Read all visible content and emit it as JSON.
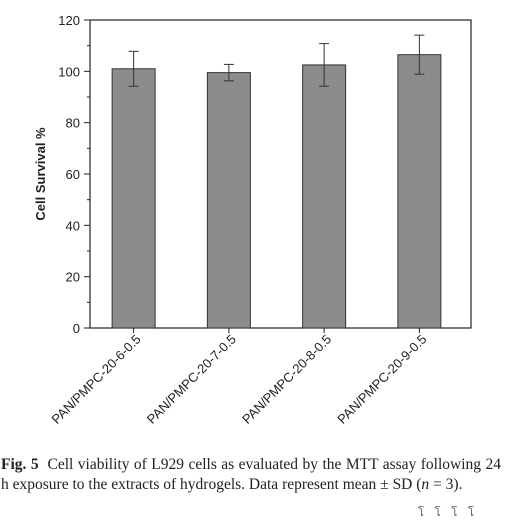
{
  "chart_data": {
    "type": "bar",
    "categories": [
      "PAN/PMPC-20-6-0.5",
      "PAN/PMPC-20-7-0.5",
      "PAN/PMPC-20-8-0.5",
      "PAN/PMPC-20-9-0.5"
    ],
    "values": [
      101,
      99.5,
      102.5,
      106.5
    ],
    "errors": [
      6.8,
      3.2,
      8.3,
      7.6
    ],
    "xlabel": "",
    "ylabel": "Cell Survival %",
    "ylim": [
      0,
      120
    ],
    "yticks": [
      "0",
      "20",
      "40",
      "60",
      "80",
      "100",
      "120"
    ],
    "bar_color": "#8c8c8c",
    "grid": false
  },
  "caption": {
    "label": "Fig. 5",
    "text_part1": "Cell viability of L929 cells as evaluated by the MTT assay following 24 h exposure to the extracts of hydrogels. Data represent mean ± SD (",
    "n_symbol": "n",
    "text_part2": " = 3)."
  },
  "footer_glyphs": "โ โ โ โ"
}
